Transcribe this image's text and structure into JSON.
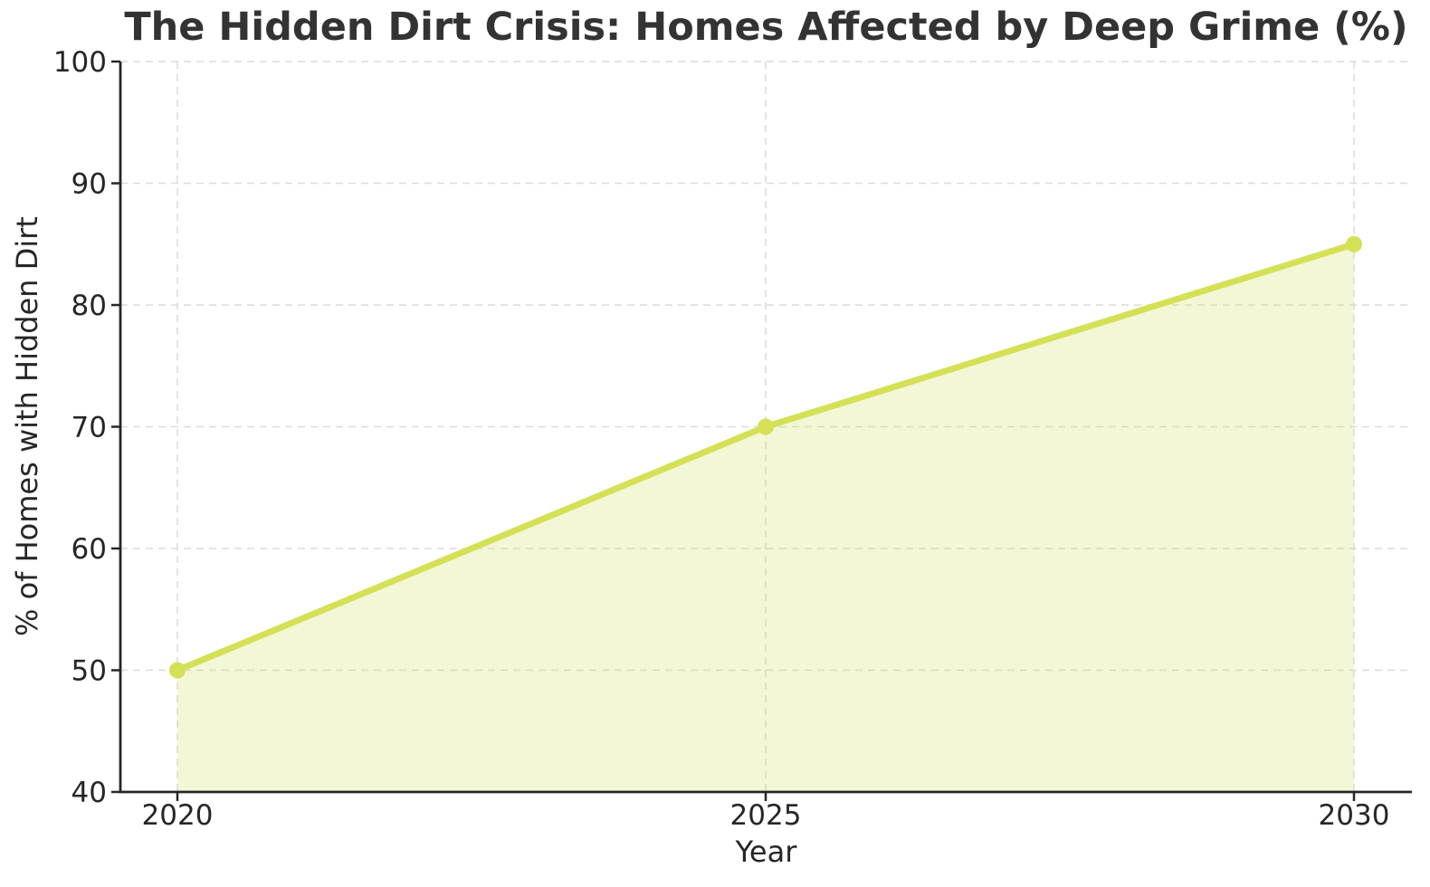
{
  "chart_data": {
    "type": "area",
    "title": "The Hidden Dirt Crisis: Homes Affected by Deep Grime (%)",
    "xlabel": "Year",
    "ylabel": "% of Homes with Hidden Dirt",
    "categories": [
      "2020",
      "2025",
      "2030"
    ],
    "values": [
      50,
      70,
      85
    ],
    "ylim": [
      40,
      100
    ],
    "yticks": [
      40,
      50,
      60,
      70,
      80,
      90,
      100
    ],
    "grid": true,
    "grid_style": "dashed",
    "legend_position": "none",
    "marker": "circle",
    "colors": {
      "line": "#d4e157",
      "fill": "rgba(212,225,87,0.25)",
      "grid": "#dcdcdc",
      "axis": "#262626",
      "tick_label": "#262626",
      "title": "#333333",
      "background": "#ffffff"
    }
  }
}
